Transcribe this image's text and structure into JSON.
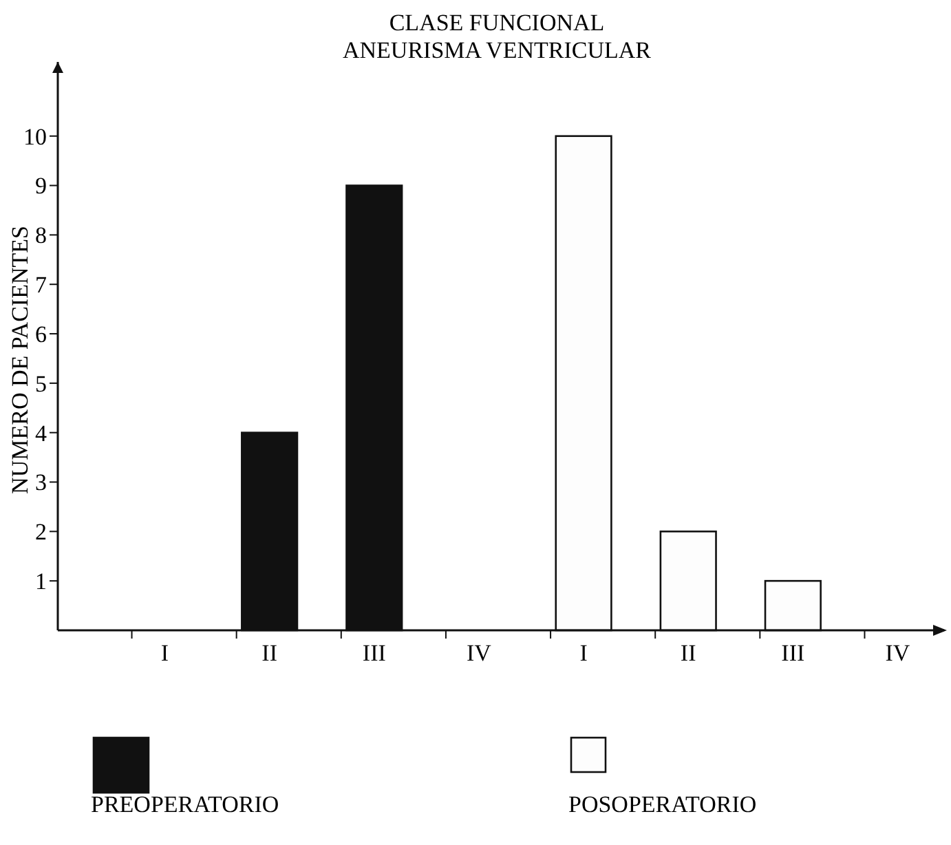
{
  "chart_data": {
    "type": "bar",
    "title": "CLASE FUNCIONAL\nANEURISMA VENTRICULAR",
    "ylabel": "NUMERO DE PACIENTES",
    "categories": [
      "I",
      "II",
      "III",
      "IV",
      "I",
      "II",
      "III",
      "IV"
    ],
    "series": [
      {
        "name": "PREOPERATORIO",
        "color": "#111111",
        "values": [
          0,
          4,
          9,
          0,
          null,
          null,
          null,
          null
        ]
      },
      {
        "name": "POSOPERATORIO",
        "color": "#fdfdfd",
        "values": [
          null,
          null,
          null,
          null,
          10,
          2,
          1,
          0
        ]
      }
    ],
    "ylim": [
      0,
      11.5
    ],
    "yticks": [
      1,
      2,
      3,
      4,
      5,
      6,
      7,
      8,
      9,
      10
    ],
    "grid": false,
    "legend": "bottom"
  }
}
